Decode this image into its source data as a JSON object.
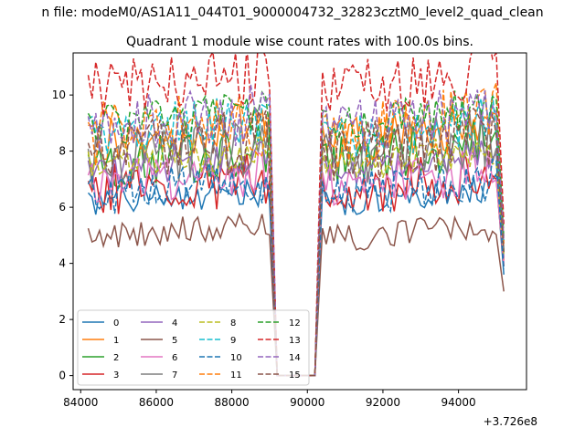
{
  "figure": {
    "suptitle": "n file: modeM0/AS1A11_044T01_9000004732_32823cztM0_level2_quad_clean",
    "title": "Quadrant 1 module wise count rates with 100.0s bins.",
    "offset_label": "+3.726e8"
  },
  "chart_data": {
    "type": "line",
    "title": "Quadrant 1 module wise count rates with 100.0s bins.",
    "xlabel": "",
    "ylabel": "",
    "x_offset": 372600000,
    "xlim": [
      83800,
      95800
    ],
    "ylim": [
      -0.5,
      11.5
    ],
    "xticks": [
      84000,
      86000,
      88000,
      90000,
      92000,
      94000
    ],
    "xtick_labels": [
      "84000",
      "86000",
      "88000",
      "90000",
      "92000",
      "94000"
    ],
    "yticks": [
      0,
      2,
      4,
      6,
      8,
      10
    ],
    "ytick_labels": [
      "0",
      "2",
      "4",
      "6",
      "8",
      "10"
    ],
    "grid": false,
    "legend_placement": "lower-left",
    "legend_columns": 4,
    "segments": [
      {
        "x_start": 84200,
        "x_end": 89000,
        "step": 100
      },
      {
        "gap_x": [
          89200,
          90200
        ],
        "value": 0
      },
      {
        "x_start": 90400,
        "x_end": 95000,
        "step": 100
      },
      {
        "x_end_point": 95200
      }
    ],
    "series": [
      {
        "name": "0",
        "color": "#1f77b4",
        "dash": "solid",
        "level_a": 6.2,
        "level_b": 6.3,
        "end": 3.6
      },
      {
        "name": "1",
        "color": "#ff7f0e",
        "dash": "solid",
        "level_a": 8.5,
        "level_b": 8.5,
        "end": 4.1
      },
      {
        "name": "2",
        "color": "#2ca02c",
        "dash": "solid",
        "level_a": 7.5,
        "level_b": 7.8,
        "end": 4.4
      },
      {
        "name": "3",
        "color": "#d62728",
        "dash": "solid",
        "level_a": 6.6,
        "level_b": 6.7,
        "end": 3.9
      },
      {
        "name": "4",
        "color": "#9467bd",
        "dash": "solid",
        "level_a": 7.3,
        "level_b": 7.4,
        "end": 4.2
      },
      {
        "name": "5",
        "color": "#8c564b",
        "dash": "solid",
        "level_a": 5.0,
        "level_b": 5.0,
        "end": 3.0
      },
      {
        "name": "6",
        "color": "#e377c2",
        "dash": "solid",
        "level_a": 6.8,
        "level_b": 6.9,
        "end": 4.0
      },
      {
        "name": "7",
        "color": "#7f7f7f",
        "dash": "solid",
        "level_a": 7.7,
        "level_b": 7.9,
        "end": 4.5
      },
      {
        "name": "8",
        "color": "#bcbd22",
        "dash": "dashed",
        "level_a": 7.6,
        "level_b": 7.6,
        "end": 4.3
      },
      {
        "name": "9",
        "color": "#17becf",
        "dash": "dashed",
        "level_a": 8.7,
        "level_b": 8.6,
        "end": 4.8
      },
      {
        "name": "10",
        "color": "#1f77b4",
        "dash": "dashed",
        "level_a": 6.5,
        "level_b": 6.6,
        "end": 3.8
      },
      {
        "name": "11",
        "color": "#ff7f0e",
        "dash": "dashed",
        "level_a": 8.6,
        "level_b": 8.7,
        "end": 4.7
      },
      {
        "name": "12",
        "color": "#2ca02c",
        "dash": "dashed",
        "level_a": 8.9,
        "level_b": 9.0,
        "end": 4.9
      },
      {
        "name": "13",
        "color": "#d62728",
        "dash": "dashed",
        "level_a": 10.2,
        "level_b": 10.3,
        "end": 5.4
      },
      {
        "name": "14",
        "color": "#9467bd",
        "dash": "dashed",
        "level_a": 8.8,
        "level_b": 8.9,
        "end": 4.8
      },
      {
        "name": "15",
        "color": "#8c564b",
        "dash": "dashed",
        "level_a": 7.9,
        "level_b": 8.0,
        "end": 4.4
      }
    ]
  }
}
